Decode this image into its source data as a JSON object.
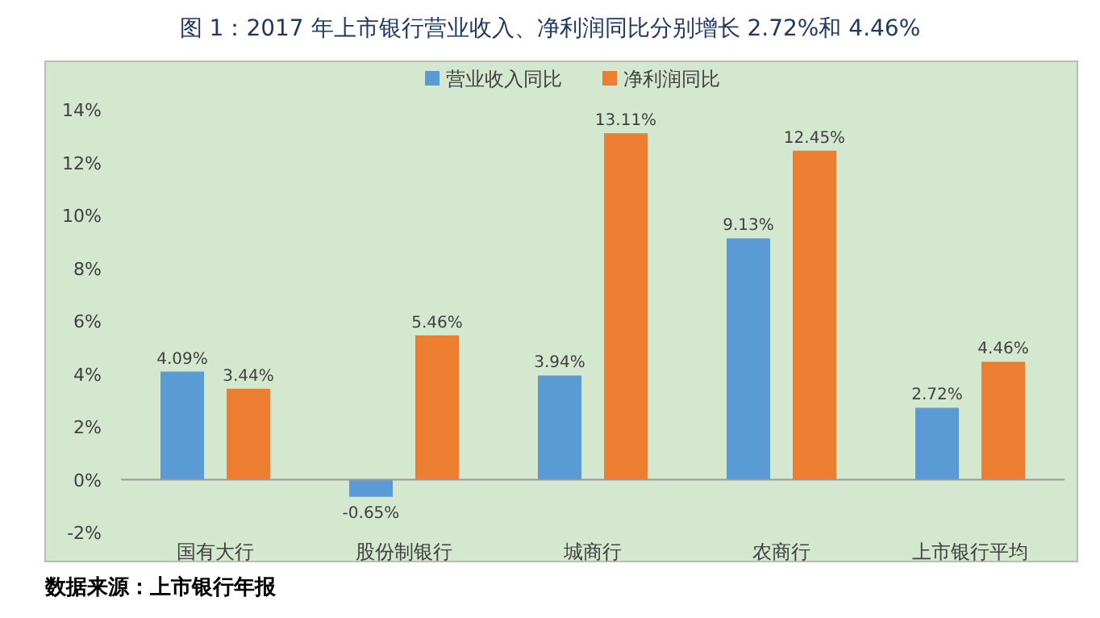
{
  "chart_data": {
    "type": "bar",
    "title": "图 1：2017 年上市银行营业收入、净利润同比分别增长 2.72%和 4.46%",
    "categories": [
      "国有大行",
      "股份制银行",
      "城商行",
      "农商行",
      "上市银行平均"
    ],
    "series": [
      {
        "name": "营业收入同比",
        "color": "#5b9bd5",
        "values": [
          4.09,
          -0.65,
          3.94,
          9.13,
          2.72
        ],
        "value_labels": [
          "4.09%",
          "-0.65%",
          "3.94%",
          "9.13%",
          "2.72%"
        ]
      },
      {
        "name": "净利润同比",
        "color": "#ed7d31",
        "values": [
          3.44,
          5.46,
          13.11,
          12.45,
          4.46
        ],
        "value_labels": [
          "3.44%",
          "5.46%",
          "13.11%",
          "12.45%",
          "4.46%"
        ]
      }
    ],
    "ylim": [
      -2,
      14
    ],
    "yticks": [
      {
        "value": -2,
        "label": "-2%"
      },
      {
        "value": 0,
        "label": "0%"
      },
      {
        "value": 2,
        "label": "2%"
      },
      {
        "value": 4,
        "label": "4%"
      },
      {
        "value": 6,
        "label": "6%"
      },
      {
        "value": 8,
        "label": "8%"
      },
      {
        "value": 10,
        "label": "10%"
      },
      {
        "value": 12,
        "label": "12%"
      },
      {
        "value": 14,
        "label": "14%"
      }
    ],
    "legend": "top",
    "annotations": [
      "数据来源：上市银行年报"
    ]
  }
}
